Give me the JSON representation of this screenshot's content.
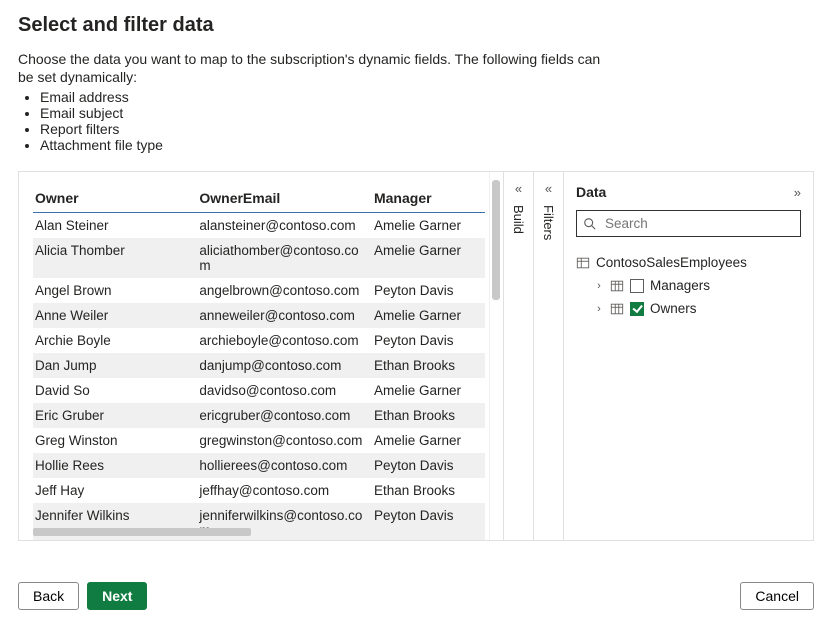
{
  "title": "Select and filter data",
  "intro": {
    "line1": "Choose the data you want to map to the subscription's dynamic fields. The following fields can",
    "line2": "be set dynamically:",
    "bullets": [
      "Email address",
      "Email subject",
      "Report filters",
      "Attachment file type"
    ]
  },
  "table": {
    "columns": [
      "Owner",
      "OwnerEmail",
      "Manager"
    ],
    "rows": [
      [
        "Alan Steiner",
        "alansteiner@contoso.com",
        "Amelie Garner"
      ],
      [
        "Alicia Thomber",
        "aliciathomber@contoso.com",
        "Amelie Garner"
      ],
      [
        "Angel Brown",
        "angelbrown@contoso.com",
        "Peyton Davis"
      ],
      [
        "Anne Weiler",
        "anneweiler@contoso.com",
        "Amelie Garner"
      ],
      [
        "Archie Boyle",
        "archieboyle@contoso.com",
        "Peyton Davis"
      ],
      [
        "Dan Jump",
        "danjump@contoso.com",
        "Ethan Brooks"
      ],
      [
        "David So",
        "davidso@contoso.com",
        "Amelie Garner"
      ],
      [
        "Eric Gruber",
        "ericgruber@contoso.com",
        "Ethan Brooks"
      ],
      [
        "Greg Winston",
        "gregwinston@contoso.com",
        "Amelie Garner"
      ],
      [
        "Hollie Rees",
        "hollierees@contoso.com",
        "Peyton Davis"
      ],
      [
        "Jeff Hay",
        "jeffhay@contoso.com",
        "Ethan Brooks"
      ],
      [
        "Jennifer Wilkins",
        "jenniferwilkins@contoso.com",
        "Peyton Davis"
      ]
    ]
  },
  "rails": {
    "build": "Build",
    "filters": "Filters"
  },
  "dataPane": {
    "title": "Data",
    "searchPlaceholder": "Search",
    "rootNode": "ContosoSalesEmployees",
    "children": [
      {
        "label": "Managers",
        "checked": false
      },
      {
        "label": "Owners",
        "checked": true
      }
    ]
  },
  "buttons": {
    "back": "Back",
    "next": "Next",
    "cancel": "Cancel"
  },
  "colors": {
    "primary": "#107c41",
    "headerRule": "#3b6fa9",
    "altRow": "#f0f0f0"
  }
}
